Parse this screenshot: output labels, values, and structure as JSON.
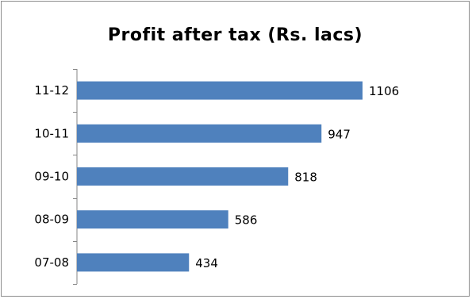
{
  "chart_data": {
    "type": "bar",
    "orientation": "horizontal",
    "title": "Profit after tax (Rs. lacs)",
    "categories": [
      "11-12",
      "10-11",
      "09-10",
      "08-09",
      "07-08"
    ],
    "values": [
      1106,
      947,
      818,
      586,
      434
    ],
    "xlim": [
      0,
      1106
    ],
    "grid": false,
    "legend": "none",
    "data_labels": true,
    "bar_color": "#4f81bd"
  }
}
